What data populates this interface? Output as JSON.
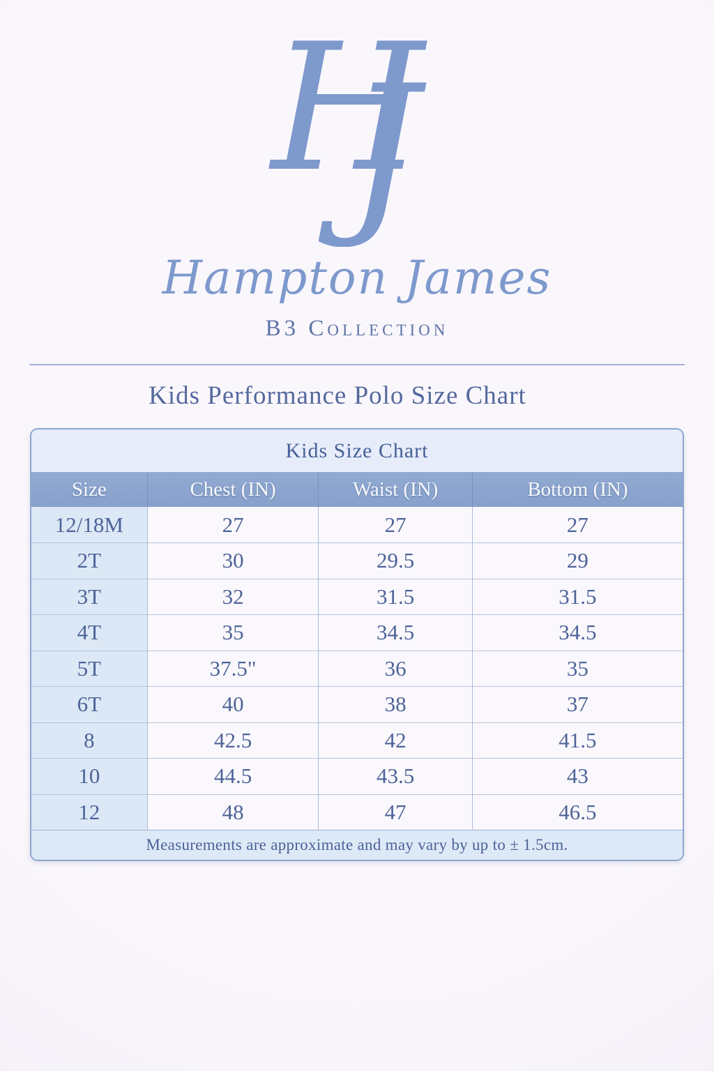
{
  "brand": {
    "monogram_letters": [
      "H",
      "J"
    ],
    "name": "Hampton James",
    "collection": "B3 Collection"
  },
  "page_heading": "Kids Performance Polo Size Chart",
  "colors": {
    "brand_blue": "#7e99cc",
    "collection_blue": "#5d72a5",
    "heading_blue": "#54699d",
    "table_border": "#8ea6ce",
    "header_row_bg": "#8ba5cf",
    "header_text": "#f7fafd",
    "title_row_bg": "#e6ecf9",
    "size_column_bg": "#dce8f6",
    "footer_row_bg": "#dde9f7",
    "data_text": "#4d6398",
    "page_background": "#f8f5fa"
  },
  "chart_data": {
    "type": "table",
    "title": "Kids Size Chart",
    "columns": [
      "Size",
      "Chest (IN)",
      "Waist (IN)",
      "Bottom (IN)"
    ],
    "rows": [
      [
        "12/18M",
        "27",
        "27",
        "27"
      ],
      [
        "2T",
        "30",
        "29.5",
        "29"
      ],
      [
        "3T",
        "32",
        "31.5",
        "31.5"
      ],
      [
        "4T",
        "35",
        "34.5",
        "34.5"
      ],
      [
        "5T",
        "37.5\"",
        "36",
        "35"
      ],
      [
        "6T",
        "40",
        "38",
        "37"
      ],
      [
        "8",
        "42.5",
        "42",
        "41.5"
      ],
      [
        "10",
        "44.5",
        "43.5",
        "43"
      ],
      [
        "12",
        "48",
        "47",
        "46.5"
      ]
    ],
    "note": "Measurements are approximate and may vary by up to ± 1.5cm."
  }
}
